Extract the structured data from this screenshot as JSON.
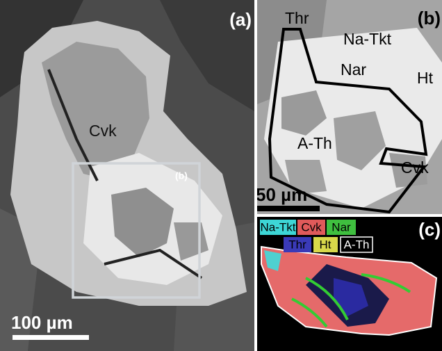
{
  "panels": [
    {
      "label": "(a)",
      "annotations": [
        "Cvk",
        "(b)"
      ],
      "scale_bar": "100 µm"
    },
    {
      "label": "(b)",
      "annotations": [
        "Thr",
        "Na-Tkt",
        "Nar",
        "Ht",
        "A-Th",
        "Cvk"
      ],
      "scale_bar": "50 µm"
    },
    {
      "label": "(c)",
      "legend": [
        "Na-Tkt",
        "Cvk",
        "Nar",
        "Thr",
        "Ht",
        "A-Th"
      ]
    }
  ]
}
